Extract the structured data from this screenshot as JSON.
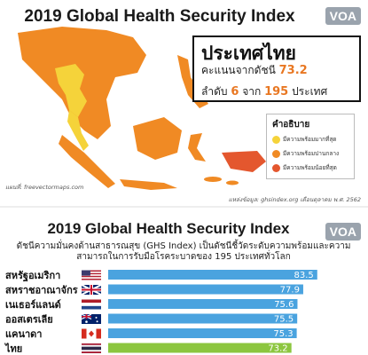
{
  "header": {
    "title": "2019 Global Health Security Index",
    "logo": "VOA"
  },
  "info_box": {
    "country": "ประเทศไทย",
    "score_prefix": "คะแนนจากดัชนี",
    "score": "73.2",
    "rank_prefix": "ลำดับ",
    "rank": "6",
    "rank_mid": "จาก",
    "total": "195",
    "rank_suffix": "ประเทศ"
  },
  "legend": {
    "title": "คำอธิบาย",
    "items": [
      {
        "label": "มีความพร้อมมากที่สุด",
        "color": "#f5d33a"
      },
      {
        "label": "มีความพร้อมปานกลาง",
        "color": "#f08a24"
      },
      {
        "label": "มีความพร้อมน้อยที่สุด",
        "color": "#e4572e"
      }
    ]
  },
  "credits": {
    "map": "แผนที่: freevectormaps.com",
    "data": "แหล่งข้อมูล: ghsindex.org เดือนตุลาคม พ.ศ. 2562"
  },
  "bottom": {
    "title": "2019 Global Health Security Index",
    "subtitle": "ดัชนีความมั่นคงด้านสาธารณสุข (GHS Index) เป็นดัชนีชี้วัดระดับความพร้อมและความสามารถในการรับมือโรคระบาดของ 195 ประเทศทั่วโลก"
  },
  "colors": {
    "bar_blue": "#4aa3df",
    "bar_green": "#8cc63f",
    "map_orange": "#f08a24",
    "map_yellow": "#f5d33a",
    "map_red": "#e4572e"
  },
  "chart_data": {
    "type": "bar",
    "orientation": "horizontal",
    "title": "2019 Global Health Security Index",
    "categories": [
      "สหรัฐอเมริกา",
      "สหราชอาณาจักร",
      "เนเธอร์แลนด์",
      "ออสเตรเลีย",
      "แคนาดา",
      "ไทย"
    ],
    "values": [
      83.5,
      77.9,
      75.6,
      75.5,
      75.3,
      73.2
    ],
    "flags": [
      "us-flag-icon",
      "uk-flag-icon",
      "nl-flag-icon",
      "au-flag-icon",
      "ca-flag-icon",
      "th-flag-icon"
    ],
    "highlight": "ไทย",
    "xlim": [
      0,
      85
    ],
    "grid": false,
    "legend": "none"
  }
}
